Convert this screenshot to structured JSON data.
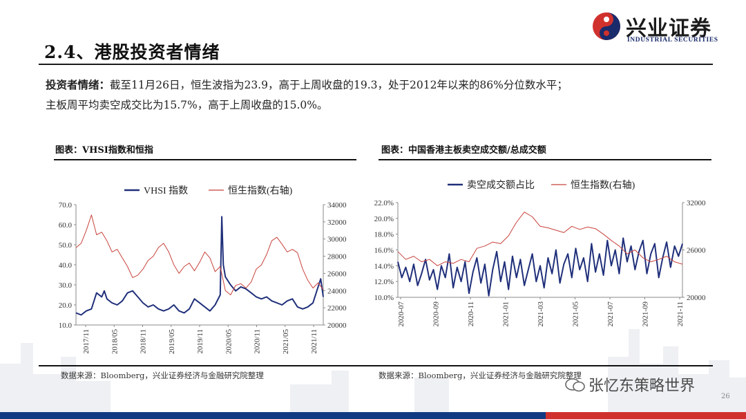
{
  "header": {
    "title": "2.4、港股投资者情绪",
    "logo_cn": "兴业证券",
    "logo_en": "INDUSTRIAL SECURITIES"
  },
  "summary": {
    "lead": "投资者情绪：",
    "line1": "截至11月26日，恒生波指为23.9，高于上周收盘的19.3，处于2012年以来的86%分位数水平；",
    "line2": "主板周平均卖空成交比为15.7%，高于上周收盘的15.0%。"
  },
  "left_panel": {
    "title": "图表：VHSI指数和恒指",
    "source": "数据来源：Bloomberg，兴业证券经济与金融研究院整理"
  },
  "right_panel": {
    "title": "图表：中国香港主板卖空成交额/总成交额",
    "source": "数据来源：Bloomberg，兴业证券经济与金融研究院整理"
  },
  "footer": {
    "watermark": "张忆东策略世界",
    "page_number": "26"
  },
  "colors": {
    "navy": "#1f2f7a",
    "red": "#c8423b",
    "footer_blue": "#123a82",
    "footer_red": "#d0312d"
  },
  "chart_data": [
    {
      "type": "line",
      "title": "",
      "x_ticks": [
        "2017/11",
        "2018/05",
        "2018/11",
        "2019/05",
        "2019/11",
        "2020/05",
        "2020/11",
        "2021/05",
        "2021/11"
      ],
      "y_left_ticks": [
        "10.0",
        "20.0",
        "30.0",
        "40.0",
        "50.0",
        "60.0",
        "70.0"
      ],
      "y_left_range": [
        10,
        70
      ],
      "y_right_ticks": [
        "20000",
        "22000",
        "24000",
        "26000",
        "28000",
        "30000",
        "32000",
        "34000"
      ],
      "y_right_range": [
        20000,
        34000
      ],
      "legend": [
        "VHSI 指数",
        "恒生指数(右轴)"
      ],
      "legend_position": "top",
      "series": [
        {
          "name": "VHSI 指数",
          "axis": "left",
          "color": "#1f2f7a",
          "x": [
            0,
            1,
            2,
            3,
            4,
            5,
            5.5,
            6,
            7,
            8,
            9,
            10,
            11,
            12,
            13,
            14,
            15,
            16,
            17,
            18,
            19,
            20,
            21,
            22,
            23,
            24,
            25,
            26,
            27,
            28,
            28.3,
            28.6,
            29,
            30,
            31,
            32,
            33,
            34,
            35,
            36,
            37,
            38,
            39,
            40,
            41,
            42,
            43,
            44,
            45,
            46,
            47,
            47.5,
            48
          ],
          "y": [
            16,
            15,
            17,
            18,
            26,
            24,
            27,
            23,
            21,
            20,
            22,
            26,
            27,
            24,
            21,
            19,
            20,
            18,
            17,
            18,
            20,
            17,
            16,
            18,
            23,
            21,
            19,
            17,
            20,
            25,
            64,
            40,
            34,
            30,
            27,
            29,
            28,
            26,
            24,
            23,
            24,
            22,
            21,
            20,
            22,
            23,
            19,
            18,
            19,
            21,
            29,
            33,
            24
          ]
        },
        {
          "name": "恒生指数(右轴)",
          "axis": "right",
          "color": "#c8423b",
          "x": [
            0,
            1,
            2,
            3,
            4,
            5,
            6,
            7,
            8,
            9,
            10,
            11,
            12,
            13,
            14,
            15,
            16,
            17,
            18,
            19,
            20,
            21,
            22,
            23,
            24,
            25,
            26,
            27,
            28,
            29,
            30,
            31,
            32,
            33,
            34,
            35,
            36,
            37,
            38,
            39,
            40,
            41,
            42,
            43,
            44,
            45,
            46,
            47,
            48
          ],
          "y": [
            29000,
            29500,
            31000,
            32800,
            30500,
            30800,
            29800,
            28500,
            28800,
            27800,
            26800,
            25500,
            25800,
            26500,
            27500,
            28000,
            29000,
            29500,
            28500,
            27000,
            26000,
            26800,
            27200,
            26300,
            27300,
            28500,
            27800,
            26200,
            26800,
            24000,
            23500,
            24600,
            24800,
            24300,
            25000,
            26500,
            27000,
            28200,
            29800,
            30200,
            29400,
            28500,
            28800,
            28400,
            26500,
            25200,
            24300,
            24900,
            24100
          ]
        }
      ]
    },
    {
      "type": "line",
      "title": "",
      "x_ticks": [
        "2020-07",
        "2020-09",
        "2020-11",
        "2021-01",
        "2021-03",
        "2021-05",
        "2021-07",
        "2021-09",
        "2021-11"
      ],
      "y_left_ticks": [
        "10.0%",
        "12.0%",
        "14.0%",
        "16.0%",
        "18.0%",
        "20.0%",
        "22.0%"
      ],
      "y_left_range": [
        10,
        22
      ],
      "y_right_ticks": [
        "20000",
        "26000",
        "32000"
      ],
      "y_right_range": [
        20000,
        32000
      ],
      "legend": [
        "卖空成交额占比",
        "恒生指数(右轴)"
      ],
      "legend_position": "top",
      "series": [
        {
          "name": "卖空成交额占比",
          "axis": "left",
          "color": "#1f2f7a",
          "x": [
            0,
            0.5,
            1,
            1.5,
            2,
            2.5,
            3,
            3.5,
            4,
            4.5,
            5,
            5.5,
            6,
            6.5,
            7,
            7.5,
            8,
            8.5,
            9,
            9.5,
            10,
            10.5,
            11,
            11.5,
            12,
            12.5,
            13,
            13.5,
            14,
            14.5,
            15,
            15.5,
            16,
            16.5,
            17,
            17.5,
            18,
            18.5,
            19,
            19.5,
            20,
            20.5,
            21,
            21.5,
            22,
            22.5,
            23,
            23.5,
            24,
            24.5,
            25,
            25.5,
            26,
            26.5,
            27,
            27.5,
            28,
            28.5,
            29,
            29.5,
            30,
            30.5,
            31,
            31.5,
            32,
            32.5,
            33,
            33.5,
            34,
            34.5,
            35,
            35.5,
            36
          ],
          "y": [
            14.5,
            12.5,
            13.8,
            12.0,
            14.2,
            11.5,
            13.0,
            14.8,
            12.2,
            13.5,
            11.0,
            14.0,
            12.5,
            15.5,
            11.2,
            13.8,
            12.0,
            14.5,
            10.5,
            13.2,
            15.0,
            11.8,
            14.2,
            10.2,
            13.5,
            15.8,
            12.0,
            14.5,
            11.0,
            15.2,
            12.5,
            14.8,
            11.5,
            13.5,
            15.5,
            12.0,
            14.0,
            11.2,
            15.0,
            13.0,
            16.0,
            11.8,
            14.2,
            15.5,
            12.5,
            16.2,
            13.5,
            15.0,
            12.0,
            16.8,
            13.2,
            15.5,
            12.8,
            17.2,
            14.0,
            16.0,
            13.0,
            17.5,
            14.5,
            16.5,
            13.5,
            15.8,
            17.2,
            13.0,
            15.5,
            16.8,
            12.5,
            15.0,
            17.0,
            13.8,
            16.5,
            15.2,
            16.8
          ]
        },
        {
          "name": "恒生指数(右轴)",
          "axis": "right",
          "color": "#c8423b",
          "x": [
            0,
            1,
            2,
            3,
            4,
            5,
            6,
            7,
            8,
            9,
            10,
            11,
            12,
            13,
            14,
            15,
            16,
            17,
            18,
            19,
            20,
            21,
            22,
            23,
            24,
            25,
            26,
            27,
            28,
            29,
            30,
            31,
            32,
            33,
            34,
            35,
            36
          ],
          "y": [
            25800,
            24800,
            25200,
            24500,
            24800,
            24000,
            24500,
            24300,
            24800,
            24500,
            26200,
            26500,
            27000,
            26800,
            27800,
            29500,
            30800,
            30200,
            29000,
            28800,
            28500,
            28200,
            29000,
            28600,
            28900,
            28700,
            28000,
            27200,
            26500,
            25500,
            26000,
            25000,
            24500,
            24800,
            25200,
            24500,
            24200
          ]
        }
      ]
    }
  ]
}
